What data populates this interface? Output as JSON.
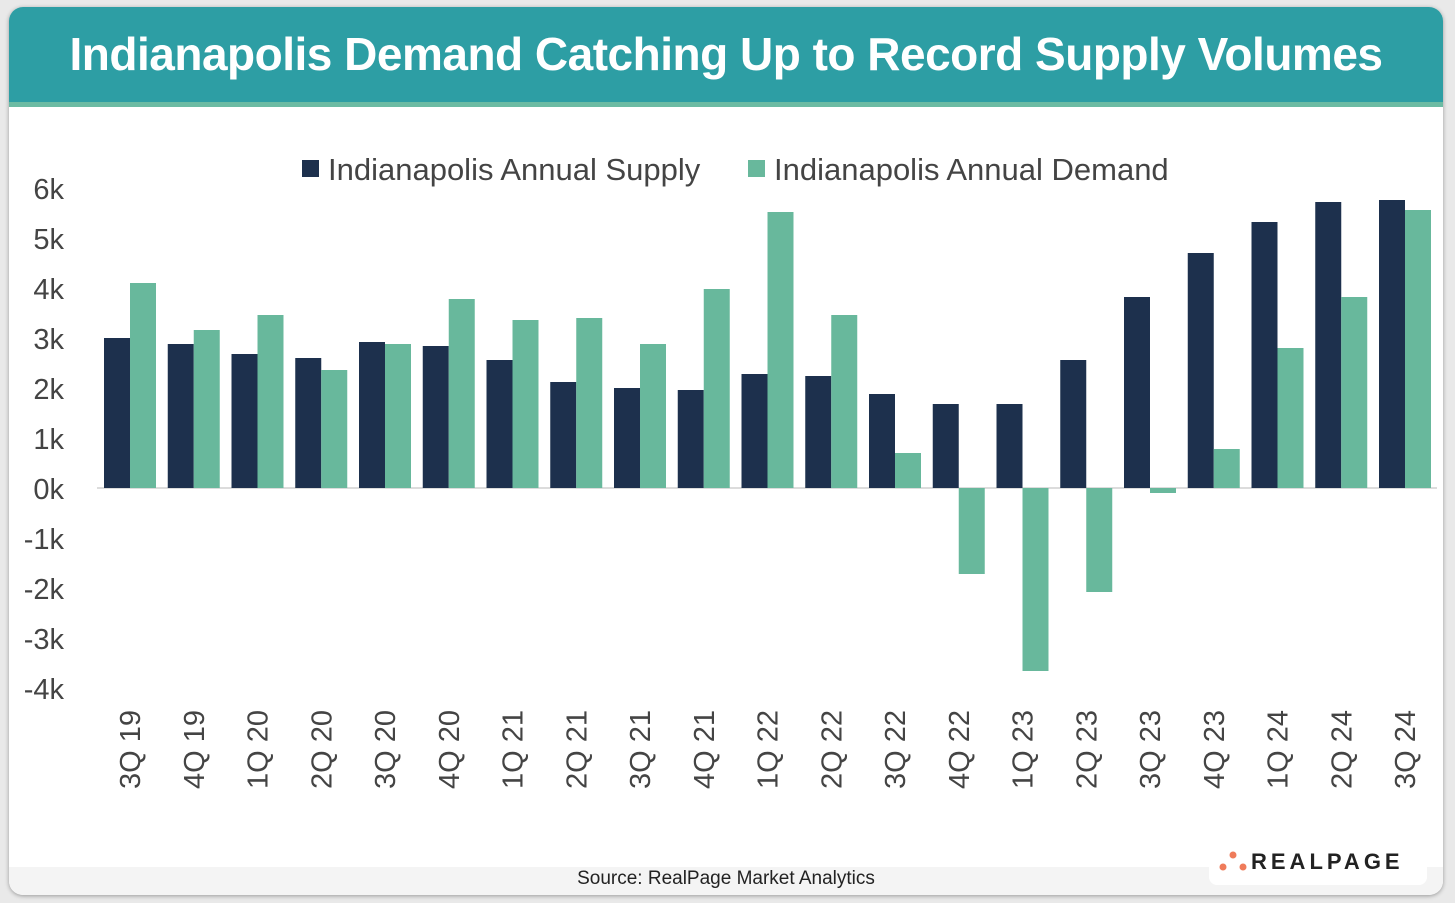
{
  "title": "Indianapolis Demand Catching Up to Record Supply Volumes",
  "source": "Source: RealPage Market Analytics",
  "logo": "REALPAGE",
  "colors": {
    "header": "#2d9ea4",
    "supply": "#1d304d",
    "demand": "#68b89c",
    "logo_dots": "#ef7b5a"
  },
  "chart_data": {
    "type": "bar",
    "title": "",
    "xlabel": "",
    "ylabel": "",
    "ylim": [
      -4,
      6
    ],
    "y_unit": "thousands",
    "yticks": [
      "6k",
      "5k",
      "4k",
      "3k",
      "2k",
      "1k",
      "0k",
      "-1k",
      "-2k",
      "-3k",
      "-4k"
    ],
    "grid": false,
    "legend_position": "top",
    "categories": [
      "3Q 19",
      "4Q 19",
      "1Q 20",
      "2Q 20",
      "3Q 20",
      "4Q 20",
      "1Q 21",
      "2Q 21",
      "3Q 21",
      "4Q 21",
      "1Q 22",
      "2Q 22",
      "3Q 22",
      "4Q 22",
      "1Q 23",
      "2Q 23",
      "3Q 23",
      "4Q 23",
      "1Q 24",
      "2Q 24",
      "3Q 24"
    ],
    "series": [
      {
        "name": "Indianapolis Annual Supply",
        "color": "#1d304d",
        "values": [
          3.0,
          2.88,
          2.68,
          2.6,
          2.92,
          2.84,
          2.56,
          2.12,
          2.0,
          1.96,
          2.28,
          2.24,
          1.88,
          1.68,
          1.68,
          2.56,
          3.82,
          4.7,
          5.32,
          5.72,
          5.76
        ]
      },
      {
        "name": "Indianapolis Annual Demand",
        "color": "#68b89c",
        "values": [
          4.1,
          3.16,
          3.46,
          2.36,
          2.88,
          3.78,
          3.36,
          3.4,
          2.88,
          3.98,
          5.52,
          3.46,
          0.7,
          -1.72,
          -3.66,
          -2.08,
          -0.1,
          0.78,
          2.8,
          3.82,
          5.56
        ]
      }
    ]
  }
}
